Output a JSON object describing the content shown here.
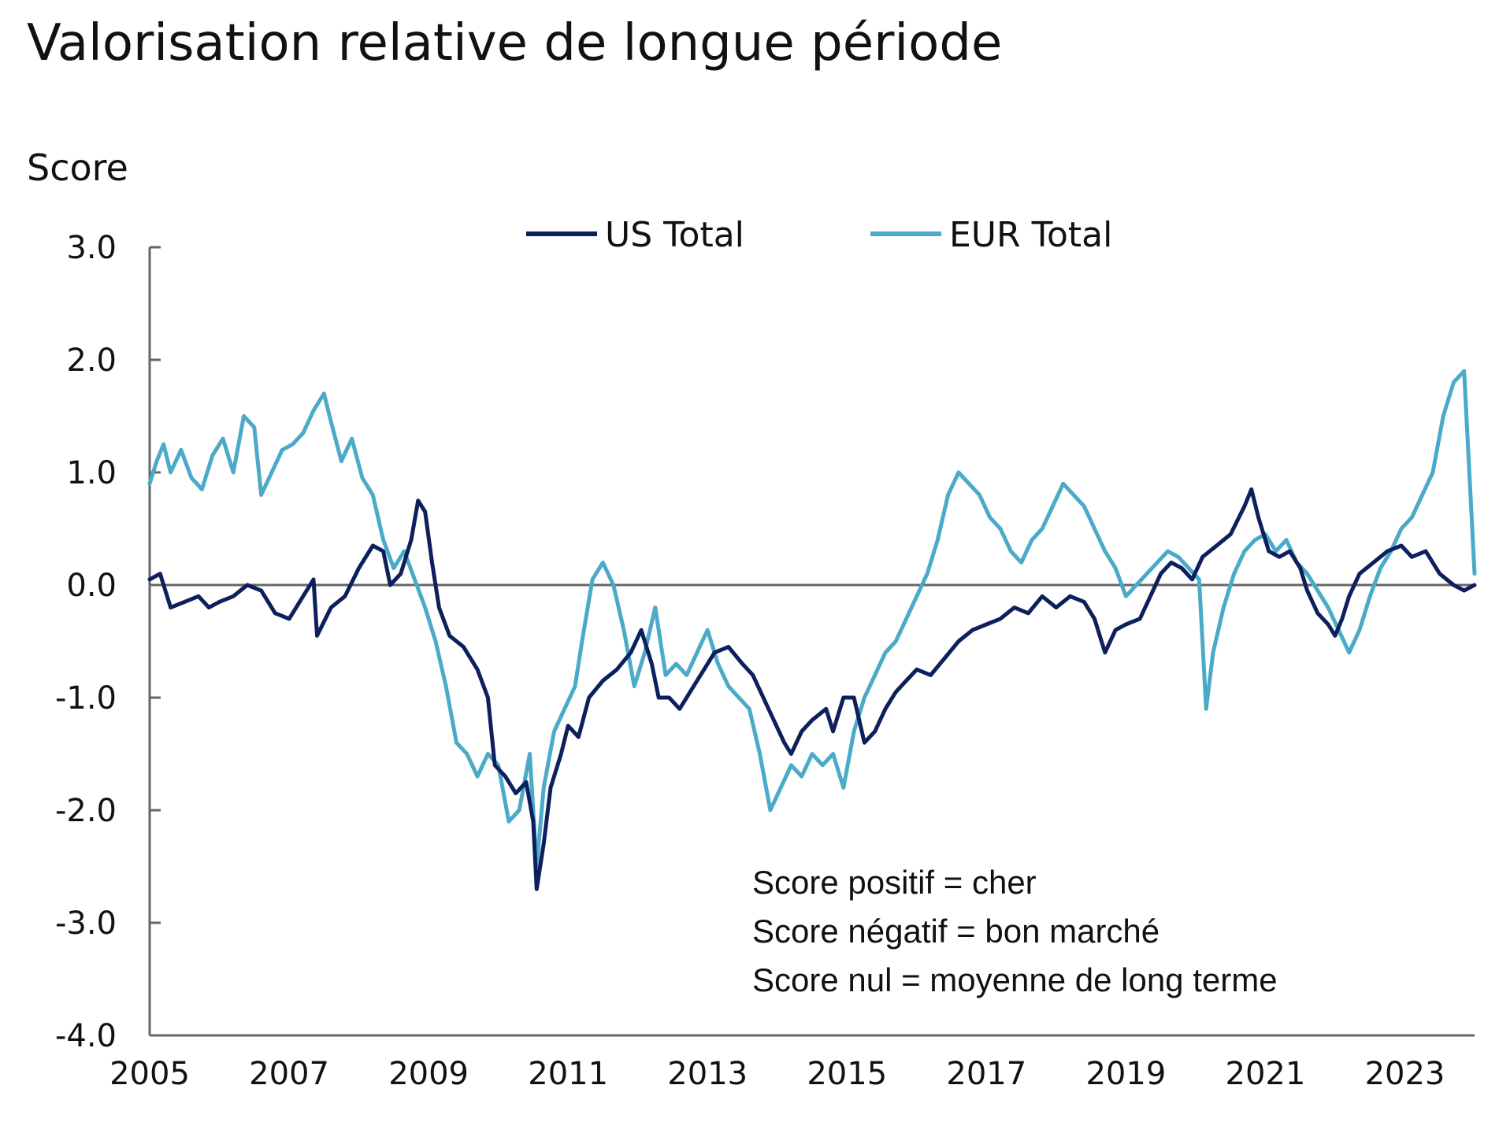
{
  "chart_data": {
    "type": "line",
    "title": "Valorisation relative de longue période",
    "xlabel": "",
    "ylabel": "Score",
    "xlim": [
      2005.0,
      2024.0
    ],
    "ylim": [
      -4.0,
      3.0
    ],
    "x_ticks": [
      2005,
      2007,
      2009,
      2011,
      2013,
      2015,
      2017,
      2019,
      2021,
      2023
    ],
    "x_tick_labels": [
      "2005",
      "2007",
      "2009",
      "2011",
      "2013",
      "2015",
      "2017",
      "2019",
      "2021",
      "2023"
    ],
    "y_ticks": [
      3.0,
      2.0,
      1.0,
      0.0,
      -1.0,
      -2.0,
      -3.0,
      -4.0
    ],
    "y_tick_labels": [
      "3.0",
      "2.0",
      "1.0",
      "0.0",
      "-1.0",
      "-2.0",
      "-3.0",
      "-4.0"
    ],
    "zero_line": true,
    "grid": false,
    "legend_position": "top-center",
    "annotations": [
      "Score positif = cher",
      "Score négatif = bon marché",
      "Score nul = moyenne de long terme"
    ],
    "series": [
      {
        "name": "US Total",
        "color": "#0d1f5c",
        "points": [
          [
            2005.0,
            0.05
          ],
          [
            2005.15,
            0.1
          ],
          [
            2005.3,
            -0.2
          ],
          [
            2005.5,
            -0.15
          ],
          [
            2005.7,
            -0.1
          ],
          [
            2005.85,
            -0.2
          ],
          [
            2006.0,
            -0.15
          ],
          [
            2006.2,
            -0.1
          ],
          [
            2006.4,
            0.0
          ],
          [
            2006.6,
            -0.05
          ],
          [
            2006.8,
            -0.25
          ],
          [
            2007.0,
            -0.3
          ],
          [
            2007.2,
            -0.1
          ],
          [
            2007.35,
            0.05
          ],
          [
            2007.4,
            -0.45
          ],
          [
            2007.6,
            -0.2
          ],
          [
            2007.8,
            -0.1
          ],
          [
            2008.0,
            0.15
          ],
          [
            2008.2,
            0.35
          ],
          [
            2008.35,
            0.3
          ],
          [
            2008.45,
            0.0
          ],
          [
            2008.6,
            0.1
          ],
          [
            2008.75,
            0.4
          ],
          [
            2008.85,
            0.75
          ],
          [
            2008.95,
            0.65
          ],
          [
            2009.05,
            0.2
          ],
          [
            2009.15,
            -0.2
          ],
          [
            2009.3,
            -0.45
          ],
          [
            2009.5,
            -0.55
          ],
          [
            2009.7,
            -0.75
          ],
          [
            2009.85,
            -1.0
          ],
          [
            2009.95,
            -1.6
          ],
          [
            2010.1,
            -1.7
          ],
          [
            2010.25,
            -1.85
          ],
          [
            2010.4,
            -1.75
          ],
          [
            2010.5,
            -2.1
          ],
          [
            2010.55,
            -2.7
          ],
          [
            2010.65,
            -2.3
          ],
          [
            2010.75,
            -1.8
          ],
          [
            2010.9,
            -1.5
          ],
          [
            2011.0,
            -1.25
          ],
          [
            2011.15,
            -1.35
          ],
          [
            2011.3,
            -1.0
          ],
          [
            2011.5,
            -0.85
          ],
          [
            2011.7,
            -0.75
          ],
          [
            2011.9,
            -0.6
          ],
          [
            2012.05,
            -0.4
          ],
          [
            2012.2,
            -0.7
          ],
          [
            2012.3,
            -1.0
          ],
          [
            2012.45,
            -1.0
          ],
          [
            2012.6,
            -1.1
          ],
          [
            2012.8,
            -0.9
          ],
          [
            2012.95,
            -0.75
          ],
          [
            2013.1,
            -0.6
          ],
          [
            2013.3,
            -0.55
          ],
          [
            2013.5,
            -0.7
          ],
          [
            2013.65,
            -0.8
          ],
          [
            2013.8,
            -1.0
          ],
          [
            2013.95,
            -1.2
          ],
          [
            2014.1,
            -1.4
          ],
          [
            2014.2,
            -1.5
          ],
          [
            2014.35,
            -1.3
          ],
          [
            2014.5,
            -1.2
          ],
          [
            2014.7,
            -1.1
          ],
          [
            2014.8,
            -1.3
          ],
          [
            2014.95,
            -1.0
          ],
          [
            2015.1,
            -1.0
          ],
          [
            2015.25,
            -1.4
          ],
          [
            2015.4,
            -1.3
          ],
          [
            2015.55,
            -1.1
          ],
          [
            2015.7,
            -0.95
          ],
          [
            2015.85,
            -0.85
          ],
          [
            2016.0,
            -0.75
          ],
          [
            2016.2,
            -0.8
          ],
          [
            2016.4,
            -0.65
          ],
          [
            2016.6,
            -0.5
          ],
          [
            2016.8,
            -0.4
          ],
          [
            2017.0,
            -0.35
          ],
          [
            2017.2,
            -0.3
          ],
          [
            2017.4,
            -0.2
          ],
          [
            2017.6,
            -0.25
          ],
          [
            2017.8,
            -0.1
          ],
          [
            2018.0,
            -0.2
          ],
          [
            2018.2,
            -0.1
          ],
          [
            2018.4,
            -0.15
          ],
          [
            2018.55,
            -0.3
          ],
          [
            2018.7,
            -0.6
          ],
          [
            2018.85,
            -0.4
          ],
          [
            2019.0,
            -0.35
          ],
          [
            2019.2,
            -0.3
          ],
          [
            2019.35,
            -0.1
          ],
          [
            2019.5,
            0.1
          ],
          [
            2019.65,
            0.2
          ],
          [
            2019.8,
            0.15
          ],
          [
            2019.95,
            0.05
          ],
          [
            2020.1,
            0.25
          ],
          [
            2020.3,
            0.35
          ],
          [
            2020.5,
            0.45
          ],
          [
            2020.7,
            0.7
          ],
          [
            2020.8,
            0.85
          ],
          [
            2020.9,
            0.6
          ],
          [
            2021.05,
            0.3
          ],
          [
            2021.2,
            0.25
          ],
          [
            2021.35,
            0.3
          ],
          [
            2021.5,
            0.15
          ],
          [
            2021.6,
            -0.05
          ],
          [
            2021.75,
            -0.25
          ],
          [
            2021.9,
            -0.35
          ],
          [
            2022.0,
            -0.45
          ],
          [
            2022.1,
            -0.3
          ],
          [
            2022.2,
            -0.1
          ],
          [
            2022.35,
            0.1
          ],
          [
            2022.55,
            0.2
          ],
          [
            2022.75,
            0.3
          ],
          [
            2022.95,
            0.35
          ],
          [
            2023.1,
            0.25
          ],
          [
            2023.3,
            0.3
          ],
          [
            2023.5,
            0.1
          ],
          [
            2023.7,
            0.0
          ],
          [
            2023.85,
            -0.05
          ],
          [
            2024.0,
            0.0
          ]
        ]
      },
      {
        "name": "EUR Total",
        "color": "#4aaac8",
        "points": [
          [
            2005.0,
            0.9
          ],
          [
            2005.1,
            1.1
          ],
          [
            2005.2,
            1.25
          ],
          [
            2005.3,
            1.0
          ],
          [
            2005.45,
            1.2
          ],
          [
            2005.6,
            0.95
          ],
          [
            2005.75,
            0.85
          ],
          [
            2005.9,
            1.15
          ],
          [
            2006.05,
            1.3
          ],
          [
            2006.2,
            1.0
          ],
          [
            2006.35,
            1.5
          ],
          [
            2006.5,
            1.4
          ],
          [
            2006.6,
            0.8
          ],
          [
            2006.75,
            1.0
          ],
          [
            2006.9,
            1.2
          ],
          [
            2007.05,
            1.25
          ],
          [
            2007.2,
            1.35
          ],
          [
            2007.35,
            1.55
          ],
          [
            2007.5,
            1.7
          ],
          [
            2007.6,
            1.45
          ],
          [
            2007.75,
            1.1
          ],
          [
            2007.9,
            1.3
          ],
          [
            2008.05,
            0.95
          ],
          [
            2008.2,
            0.8
          ],
          [
            2008.35,
            0.4
          ],
          [
            2008.5,
            0.15
          ],
          [
            2008.65,
            0.3
          ],
          [
            2008.8,
            0.05
          ],
          [
            2008.95,
            -0.2
          ],
          [
            2009.1,
            -0.5
          ],
          [
            2009.25,
            -0.9
          ],
          [
            2009.4,
            -1.4
          ],
          [
            2009.55,
            -1.5
          ],
          [
            2009.7,
            -1.7
          ],
          [
            2009.85,
            -1.5
          ],
          [
            2010.0,
            -1.6
          ],
          [
            2010.15,
            -2.1
          ],
          [
            2010.3,
            -2.0
          ],
          [
            2010.45,
            -1.5
          ],
          [
            2010.55,
            -2.5
          ],
          [
            2010.65,
            -1.8
          ],
          [
            2010.8,
            -1.3
          ],
          [
            2010.95,
            -1.1
          ],
          [
            2011.1,
            -0.9
          ],
          [
            2011.2,
            -0.5
          ],
          [
            2011.35,
            0.05
          ],
          [
            2011.5,
            0.2
          ],
          [
            2011.65,
            0.0
          ],
          [
            2011.8,
            -0.4
          ],
          [
            2011.95,
            -0.9
          ],
          [
            2012.1,
            -0.6
          ],
          [
            2012.25,
            -0.2
          ],
          [
            2012.4,
            -0.8
          ],
          [
            2012.55,
            -0.7
          ],
          [
            2012.7,
            -0.8
          ],
          [
            2012.85,
            -0.6
          ],
          [
            2013.0,
            -0.4
          ],
          [
            2013.15,
            -0.7
          ],
          [
            2013.3,
            -0.9
          ],
          [
            2013.45,
            -1.0
          ],
          [
            2013.6,
            -1.1
          ],
          [
            2013.75,
            -1.5
          ],
          [
            2013.9,
            -2.0
          ],
          [
            2014.05,
            -1.8
          ],
          [
            2014.2,
            -1.6
          ],
          [
            2014.35,
            -1.7
          ],
          [
            2014.5,
            -1.5
          ],
          [
            2014.65,
            -1.6
          ],
          [
            2014.8,
            -1.5
          ],
          [
            2014.95,
            -1.8
          ],
          [
            2015.1,
            -1.3
          ],
          [
            2015.25,
            -1.0
          ],
          [
            2015.4,
            -0.8
          ],
          [
            2015.55,
            -0.6
          ],
          [
            2015.7,
            -0.5
          ],
          [
            2015.85,
            -0.3
          ],
          [
            2016.0,
            -0.1
          ],
          [
            2016.15,
            0.1
          ],
          [
            2016.3,
            0.4
          ],
          [
            2016.45,
            0.8
          ],
          [
            2016.6,
            1.0
          ],
          [
            2016.75,
            0.9
          ],
          [
            2016.9,
            0.8
          ],
          [
            2017.05,
            0.6
          ],
          [
            2017.2,
            0.5
          ],
          [
            2017.35,
            0.3
          ],
          [
            2017.5,
            0.2
          ],
          [
            2017.65,
            0.4
          ],
          [
            2017.8,
            0.5
          ],
          [
            2017.95,
            0.7
          ],
          [
            2018.1,
            0.9
          ],
          [
            2018.25,
            0.8
          ],
          [
            2018.4,
            0.7
          ],
          [
            2018.55,
            0.5
          ],
          [
            2018.7,
            0.3
          ],
          [
            2018.85,
            0.15
          ],
          [
            2019.0,
            -0.1
          ],
          [
            2019.15,
            0.0
          ],
          [
            2019.3,
            0.1
          ],
          [
            2019.45,
            0.2
          ],
          [
            2019.6,
            0.3
          ],
          [
            2019.75,
            0.25
          ],
          [
            2019.9,
            0.15
          ],
          [
            2020.05,
            0.05
          ],
          [
            2020.15,
            -1.1
          ],
          [
            2020.25,
            -0.6
          ],
          [
            2020.4,
            -0.2
          ],
          [
            2020.55,
            0.1
          ],
          [
            2020.7,
            0.3
          ],
          [
            2020.85,
            0.4
          ],
          [
            2021.0,
            0.45
          ],
          [
            2021.15,
            0.3
          ],
          [
            2021.3,
            0.4
          ],
          [
            2021.45,
            0.2
          ],
          [
            2021.6,
            0.1
          ],
          [
            2021.75,
            -0.05
          ],
          [
            2021.9,
            -0.2
          ],
          [
            2022.05,
            -0.4
          ],
          [
            2022.2,
            -0.6
          ],
          [
            2022.35,
            -0.4
          ],
          [
            2022.5,
            -0.1
          ],
          [
            2022.65,
            0.15
          ],
          [
            2022.8,
            0.3
          ],
          [
            2022.95,
            0.5
          ],
          [
            2023.1,
            0.6
          ],
          [
            2023.25,
            0.8
          ],
          [
            2023.4,
            1.0
          ],
          [
            2023.55,
            1.5
          ],
          [
            2023.7,
            1.8
          ],
          [
            2023.85,
            1.9
          ],
          [
            2024.0,
            0.1
          ]
        ]
      }
    ]
  }
}
